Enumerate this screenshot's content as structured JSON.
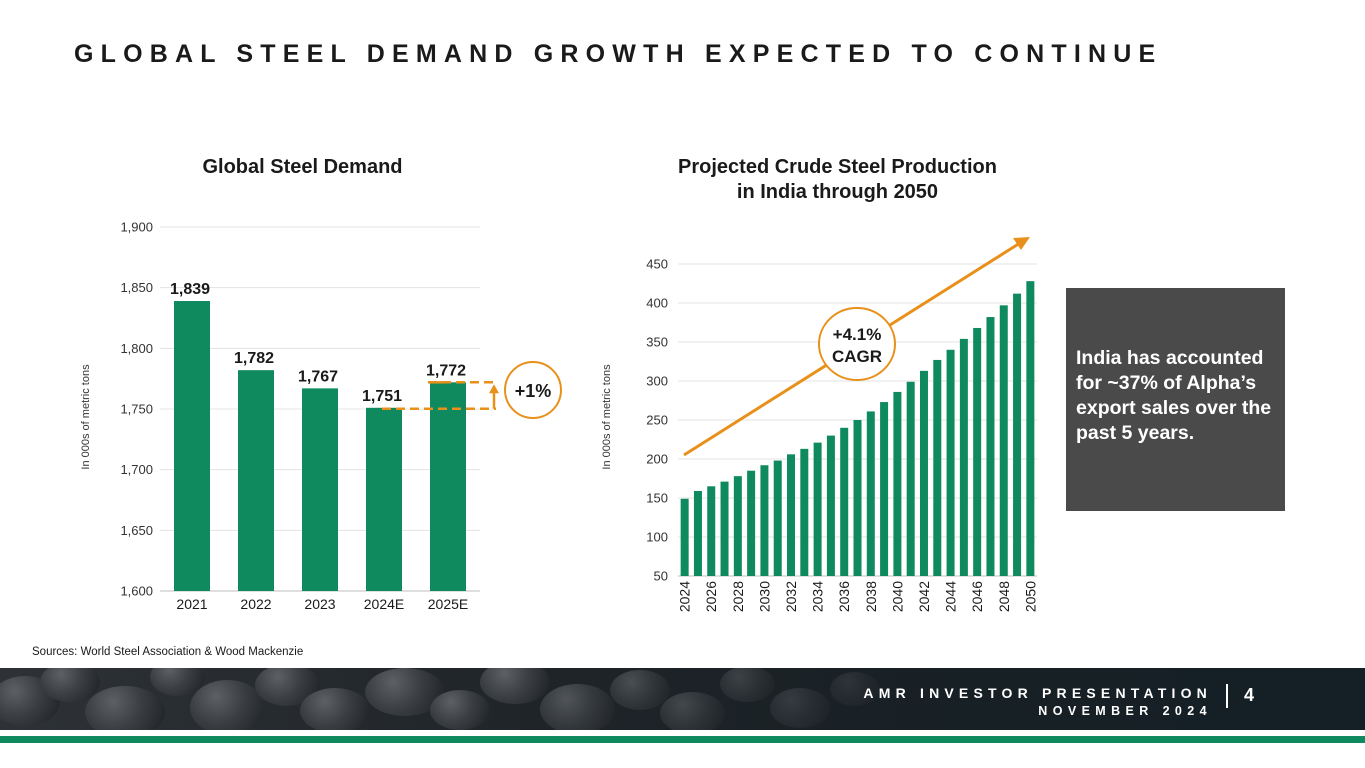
{
  "slide": {
    "title": "GLOBAL STEEL DEMAND GROWTH EXPECTED TO CONTINUE",
    "sources": "Sources: World Steel Association & Wood Mackenzie",
    "callout": "India has accounted for ~37% of Alpha’s export sales over the past 5 years."
  },
  "footer": {
    "brand": "AMR INVESTOR PRESENTATION",
    "date": "NOVEMBER 2024",
    "page": "4"
  },
  "colors": {
    "bar": "#0f8a5f",
    "accent": "#e8901a",
    "callout_bg": "#4a4a4a",
    "gridline": "#e3e3e3"
  },
  "chart_data": [
    {
      "type": "bar",
      "title": "Global Steel Demand",
      "ylabel": "In 000s of metric tons",
      "categories": [
        "2021",
        "2022",
        "2023",
        "2024E",
        "2025E"
      ],
      "values": [
        1839,
        1782,
        1767,
        1751,
        1772
      ],
      "data_labels": [
        "1,839",
        "1,782",
        "1,767",
        "1,751",
        "1,772"
      ],
      "ylim": [
        1600,
        1900
      ],
      "yticks": [
        1600,
        1650,
        1700,
        1750,
        1800,
        1850,
        1900
      ],
      "ytick_labels": [
        "1,600",
        "1,650",
        "1,700",
        "1,750",
        "1,800",
        "1,850",
        "1,900"
      ],
      "grid": true,
      "annotation": "+1%"
    },
    {
      "type": "bar",
      "title": "Projected Crude Steel Production in India through 2050",
      "ylabel": "In 000s of metric tons",
      "categories": [
        "2024",
        "2025",
        "2026",
        "2027",
        "2028",
        "2029",
        "2030",
        "2031",
        "2032",
        "2033",
        "2034",
        "2035",
        "2036",
        "2037",
        "2038",
        "2039",
        "2040",
        "2041",
        "2042",
        "2043",
        "2044",
        "2045",
        "2046",
        "2047",
        "2048",
        "2049",
        "2050"
      ],
      "shown_category_labels": [
        "2024",
        "2026",
        "2028",
        "2030",
        "2032",
        "2034",
        "2036",
        "2038",
        "2040",
        "2042",
        "2044",
        "2046",
        "2048",
        "2050"
      ],
      "values": [
        149,
        159,
        165,
        171,
        178,
        185,
        192,
        198,
        206,
        213,
        221,
        230,
        240,
        250,
        261,
        273,
        286,
        299,
        313,
        327,
        340,
        354,
        368,
        382,
        397,
        412,
        428
      ],
      "ylim": [
        50,
        450
      ],
      "yticks": [
        50,
        100,
        150,
        200,
        250,
        300,
        350,
        400,
        450
      ],
      "ytick_labels": [
        "50",
        "100",
        "150",
        "200",
        "250",
        "300",
        "350",
        "400",
        "450"
      ],
      "grid": true,
      "annotation": [
        "+4.1%",
        "CAGR"
      ]
    }
  ]
}
